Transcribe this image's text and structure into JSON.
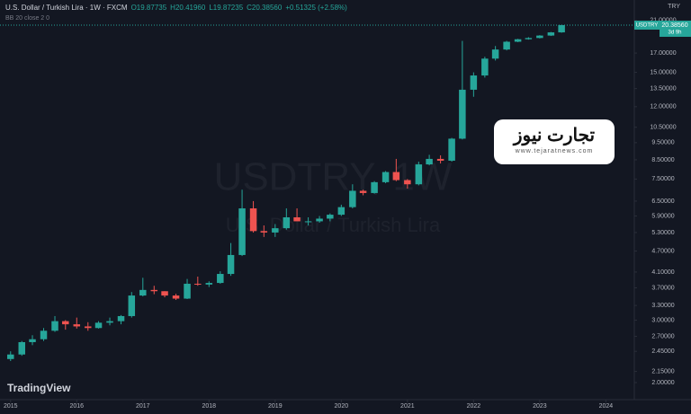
{
  "header": {
    "symbol": "U.S. Dollar / Turkish Lira · 1W · FXCM",
    "open": "O19.87735",
    "high": "H20.41960",
    "low": "L19.87235",
    "close": "C20.38560",
    "change": "+0.51325 (+2.58%)",
    "indicator": "BB 20 close 2 0",
    "currency": "TRY",
    "brand": "TradingView"
  },
  "logo": {
    "title": "تجارت نیوز",
    "url": "www.tejaratnews.com"
  },
  "chart_data": {
    "type": "candlestick",
    "watermark": "USDTRY, 1W",
    "watermark_sub": "U.S. Dollar / Turkish Lira",
    "up_color": "#26a69a",
    "down_color": "#ef5350",
    "log_scale": true,
    "last_price": {
      "value": 20.3856,
      "label": "20.38560",
      "symbol": "USDTRY",
      "countdown": "3d 9h"
    },
    "xlim": [
      2014.84,
      2024.43
    ],
    "xticks": [
      2015,
      2016,
      2017,
      2018,
      2019,
      2020,
      2021,
      2022,
      2023,
      2024
    ],
    "ylim": [
      1.79,
      24.0
    ],
    "yticks": [
      {
        "value": 2,
        "label": "2.00000"
      },
      {
        "value": 2.15,
        "label": "2.15000"
      },
      {
        "value": 2.45,
        "label": "2.45000"
      },
      {
        "value": 2.7,
        "label": "2.70000"
      },
      {
        "value": 3,
        "label": "3.00000"
      },
      {
        "value": 3.3,
        "label": "3.30000"
      },
      {
        "value": 3.7,
        "label": "3.70000"
      },
      {
        "value": 4.1,
        "label": "4.10000"
      },
      {
        "value": 4.7,
        "label": "4.70000"
      },
      {
        "value": 5.3,
        "label": "5.30000"
      },
      {
        "value": 5.9,
        "label": "5.90000"
      },
      {
        "value": 6.5,
        "label": "6.50000"
      },
      {
        "value": 7.5,
        "label": "7.50000"
      },
      {
        "value": 8.5,
        "label": "8.50000"
      },
      {
        "value": 9.5,
        "label": "9.50000"
      },
      {
        "value": 10.5,
        "label": "10.50000"
      },
      {
        "value": 12,
        "label": "12.00000"
      },
      {
        "value": 13.5,
        "label": "13.50000"
      },
      {
        "value": 15,
        "label": "15.00000"
      },
      {
        "value": 17,
        "label": "17.00000"
      },
      {
        "value": 21,
        "label": "21.00000"
      }
    ],
    "x": [
      2015.0,
      2015.17,
      2015.33,
      2015.5,
      2015.67,
      2015.83,
      2016.0,
      2016.17,
      2016.33,
      2016.5,
      2016.67,
      2016.83,
      2017.0,
      2017.17,
      2017.33,
      2017.5,
      2017.67,
      2017.83,
      2018.0,
      2018.17,
      2018.33,
      2018.5,
      2018.67,
      2018.83,
      2019.0,
      2019.17,
      2019.33,
      2019.5,
      2019.67,
      2019.83,
      2020.0,
      2020.17,
      2020.33,
      2020.5,
      2020.67,
      2020.83,
      2021.0,
      2021.17,
      2021.33,
      2021.5,
      2021.67,
      2021.83,
      2022.0,
      2022.17,
      2022.33,
      2022.5,
      2022.67,
      2022.83,
      2023.0,
      2023.17,
      2023.33
    ],
    "open": [
      2.33,
      2.4,
      2.6,
      2.65,
      2.8,
      2.98,
      2.92,
      2.88,
      2.85,
      2.95,
      2.98,
      3.08,
      3.52,
      3.65,
      3.62,
      3.52,
      3.45,
      3.8,
      3.78,
      3.82,
      4.05,
      4.58,
      6.2,
      5.35,
      5.3,
      5.45,
      5.85,
      5.7,
      5.7,
      5.8,
      5.95,
      6.25,
      6.95,
      6.85,
      7.35,
      7.85,
      7.45,
      7.25,
      8.25,
      8.55,
      8.45,
      9.75,
      13.4,
      14.7,
      16.4,
      17.4,
      18.3,
      18.6,
      18.75,
      19.05,
      19.45
    ],
    "high": [
      2.45,
      2.62,
      2.72,
      2.85,
      3.08,
      3.0,
      3.05,
      2.96,
      2.98,
      3.05,
      3.1,
      3.6,
      3.95,
      3.75,
      3.62,
      3.56,
      3.92,
      3.98,
      3.86,
      4.12,
      4.95,
      7.0,
      6.5,
      5.55,
      5.6,
      6.2,
      6.2,
      5.85,
      5.9,
      6.0,
      6.35,
      7.25,
      7.0,
      7.4,
      7.9,
      8.55,
      7.5,
      8.4,
      8.78,
      8.75,
      9.8,
      18.4,
      15.0,
      16.6,
      17.8,
      18.4,
      18.65,
      18.85,
      19.1,
      19.5,
      20.42
    ],
    "low": [
      2.3,
      2.38,
      2.55,
      2.62,
      2.78,
      2.82,
      2.84,
      2.8,
      2.84,
      2.9,
      2.92,
      3.05,
      3.5,
      3.55,
      3.48,
      3.42,
      3.44,
      3.75,
      3.72,
      3.8,
      4.0,
      4.55,
      5.3,
      5.15,
      5.15,
      5.4,
      5.75,
      5.55,
      5.65,
      5.7,
      5.9,
      6.2,
      6.75,
      6.82,
      7.3,
      7.4,
      7.05,
      7.2,
      8.2,
      8.3,
      8.4,
      9.7,
      12.8,
      14.5,
      16.2,
      17.3,
      18.25,
      18.55,
      18.7,
      19.0,
      19.4
    ],
    "close": [
      2.4,
      2.6,
      2.65,
      2.8,
      2.98,
      2.92,
      2.88,
      2.85,
      2.95,
      2.98,
      3.08,
      3.52,
      3.65,
      3.62,
      3.52,
      3.45,
      3.8,
      3.78,
      3.82,
      4.05,
      4.58,
      6.2,
      5.35,
      5.3,
      5.45,
      5.85,
      5.7,
      5.7,
      5.8,
      5.95,
      6.25,
      6.95,
      6.85,
      7.35,
      7.85,
      7.45,
      7.25,
      8.25,
      8.55,
      8.45,
      9.75,
      13.4,
      14.7,
      16.4,
      17.4,
      18.3,
      18.6,
      18.75,
      19.05,
      19.45,
      20.39
    ]
  }
}
